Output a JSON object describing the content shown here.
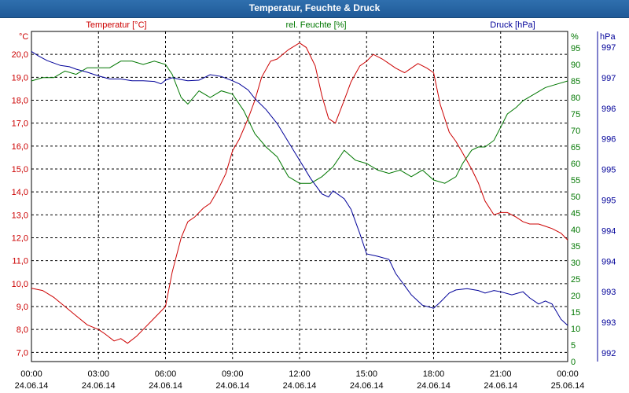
{
  "window": {
    "title": "Temperatur, Feuchte & Druck"
  },
  "colors": {
    "temperature": "#cc0000",
    "humidity": "#007700",
    "pressure": "#000099",
    "grid": "#000000",
    "titlebar": "#1f5a98"
  },
  "chart_data": {
    "type": "line",
    "title": "Temperatur, Feuchte & Druck",
    "grid": true,
    "x_ticks": [
      {
        "time": "00:00",
        "date": "24.06.14"
      },
      {
        "time": "03:00",
        "date": "24.06.14"
      },
      {
        "time": "06:00",
        "date": "24.06.14"
      },
      {
        "time": "09:00",
        "date": "24.06.14"
      },
      {
        "time": "12:00",
        "date": "24.06.14"
      },
      {
        "time": "15:00",
        "date": "24.06.14"
      },
      {
        "time": "18:00",
        "date": "24.06.14"
      },
      {
        "time": "21:00",
        "date": "24.06.14"
      },
      {
        "time": "00:00",
        "date": "25.06.14"
      }
    ],
    "axes": {
      "temperature": {
        "unit": "°C",
        "label": "Temperatur [°C]",
        "range": [
          6.6,
          21.0
        ],
        "ticks": [
          "7,0",
          "8,0",
          "9,0",
          "10,0",
          "11,0",
          "12,0",
          "13,0",
          "14,0",
          "15,0",
          "16,0",
          "17,0",
          "18,0",
          "19,0",
          "20,0"
        ]
      },
      "humidity": {
        "unit": "%",
        "label": "rel. Feuchte [%]",
        "range": [
          0,
          100
        ],
        "ticks": [
          "0",
          "5",
          "10",
          "15",
          "20",
          "25",
          "30",
          "35",
          "40",
          "45",
          "50",
          "55",
          "60",
          "65",
          "70",
          "75",
          "80",
          "85",
          "90",
          "95"
        ]
      },
      "pressure": {
        "unit": "hPa",
        "label": "Druck [hPa]",
        "ticks": [
          "997",
          "997",
          "996",
          "996",
          "995",
          "995",
          "994",
          "994",
          "993",
          "993",
          "992"
        ]
      }
    },
    "x_range_hours": [
      0,
      24
    ],
    "series": [
      {
        "name": "Temperatur [°C]",
        "axis": "temperature",
        "x": [
          0,
          0.5,
          1,
          1.5,
          2,
          2.5,
          3,
          3.3,
          3.7,
          4,
          4.3,
          4.7,
          5,
          5.5,
          6,
          6.3,
          6.7,
          7,
          7.3,
          7.7,
          8,
          8.3,
          8.7,
          9,
          9.3,
          9.7,
          10,
          10.3,
          10.7,
          11,
          11.5,
          12,
          12.3,
          12.7,
          13,
          13.3,
          13.6,
          14,
          14.3,
          14.7,
          15,
          15.3,
          15.7,
          16,
          16.3,
          16.7,
          17,
          17.3,
          17.7,
          18,
          18.3,
          18.7,
          19,
          19.3,
          19.7,
          20,
          20.3,
          20.7,
          21,
          21.3,
          21.7,
          22,
          22.3,
          22.7,
          23,
          23.3,
          23.7,
          24
        ],
        "values": [
          9.8,
          9.7,
          9.4,
          9.0,
          8.6,
          8.2,
          8.0,
          7.8,
          7.5,
          7.6,
          7.4,
          7.7,
          8.0,
          8.5,
          9.0,
          10.5,
          12.0,
          12.7,
          12.9,
          13.3,
          13.5,
          14.0,
          14.8,
          15.8,
          16.3,
          17.2,
          18.0,
          19.0,
          19.7,
          19.8,
          20.2,
          20.5,
          20.3,
          19.5,
          18.2,
          17.2,
          17.0,
          18.0,
          18.8,
          19.5,
          19.7,
          20.0,
          19.8,
          19.6,
          19.4,
          19.2,
          19.4,
          19.6,
          19.4,
          19.2,
          17.8,
          16.6,
          16.2,
          15.7,
          15.0,
          14.4,
          13.6,
          13.0,
          13.1,
          13.1,
          12.9,
          12.7,
          12.6,
          12.6,
          12.5,
          12.4,
          12.2,
          11.9
        ]
      },
      {
        "name": "rel. Feuchte [%]",
        "axis": "humidity",
        "x": [
          0,
          0.5,
          1,
          1.5,
          2,
          2.5,
          3,
          3.5,
          4,
          4.5,
          5,
          5.5,
          6,
          6.3,
          6.7,
          7,
          7.5,
          8,
          8.5,
          9,
          9.5,
          10,
          10.5,
          11,
          11.5,
          12,
          12.5,
          13,
          13.5,
          14,
          14.5,
          15,
          15.5,
          16,
          16.5,
          17,
          17.5,
          18,
          18.5,
          19,
          19.3,
          19.7,
          20,
          20.3,
          20.7,
          21,
          21.3,
          21.7,
          22,
          22.5,
          23,
          23.5,
          24
        ],
        "values": [
          85,
          86,
          86,
          88,
          87,
          89,
          89,
          89,
          91,
          91,
          90,
          91,
          90,
          87,
          80,
          78,
          82,
          80,
          82,
          81,
          76,
          69,
          65,
          62,
          56,
          54,
          54,
          56,
          59,
          64,
          61,
          60,
          58,
          57,
          58,
          56,
          58,
          55,
          54,
          56,
          60,
          64,
          65,
          65,
          67,
          71,
          75,
          77,
          79,
          81,
          83,
          84,
          85
        ]
      },
      {
        "name": "Druck [hPa]",
        "axis": "pressure",
        "x": [
          0,
          0.3,
          0.7,
          1,
          1.3,
          1.7,
          2,
          2.5,
          3,
          3.5,
          4,
          4.5,
          5,
          5.5,
          5.8,
          6,
          6.3,
          6.7,
          7,
          7.5,
          8,
          8.5,
          9,
          9.3,
          9.7,
          10,
          10.5,
          11,
          11.5,
          12,
          12.5,
          13,
          13.3,
          13.5,
          14,
          14.3,
          14.7,
          15,
          15.5,
          16,
          16.3,
          16.7,
          17,
          17.5,
          18,
          18.3,
          18.7,
          19,
          19.5,
          20,
          20.3,
          20.7,
          21,
          21.5,
          22,
          22.3,
          22.7,
          23,
          23.3,
          23.7,
          24
        ],
        "values": [
          997.03,
          996.96,
          996.88,
          996.84,
          996.8,
          996.78,
          996.74,
          996.69,
          996.63,
          996.58,
          996.58,
          996.55,
          996.55,
          996.54,
          996.5,
          996.56,
          996.6,
          996.57,
          996.55,
          996.56,
          996.65,
          996.62,
          996.55,
          996.5,
          996.4,
          996.26,
          996.08,
          995.85,
          995.55,
          995.25,
          994.95,
          994.7,
          994.65,
          994.75,
          994.62,
          994.45,
          994.05,
          993.72,
          993.68,
          993.63,
          993.4,
          993.2,
          993.05,
          992.88,
          992.83,
          992.93,
          993.08,
          993.13,
          993.15,
          993.12,
          993.08,
          993.12,
          993.1,
          993.05,
          993.1,
          993.0,
          992.9,
          992.95,
          992.9,
          992.65,
          992.55
        ]
      }
    ]
  }
}
